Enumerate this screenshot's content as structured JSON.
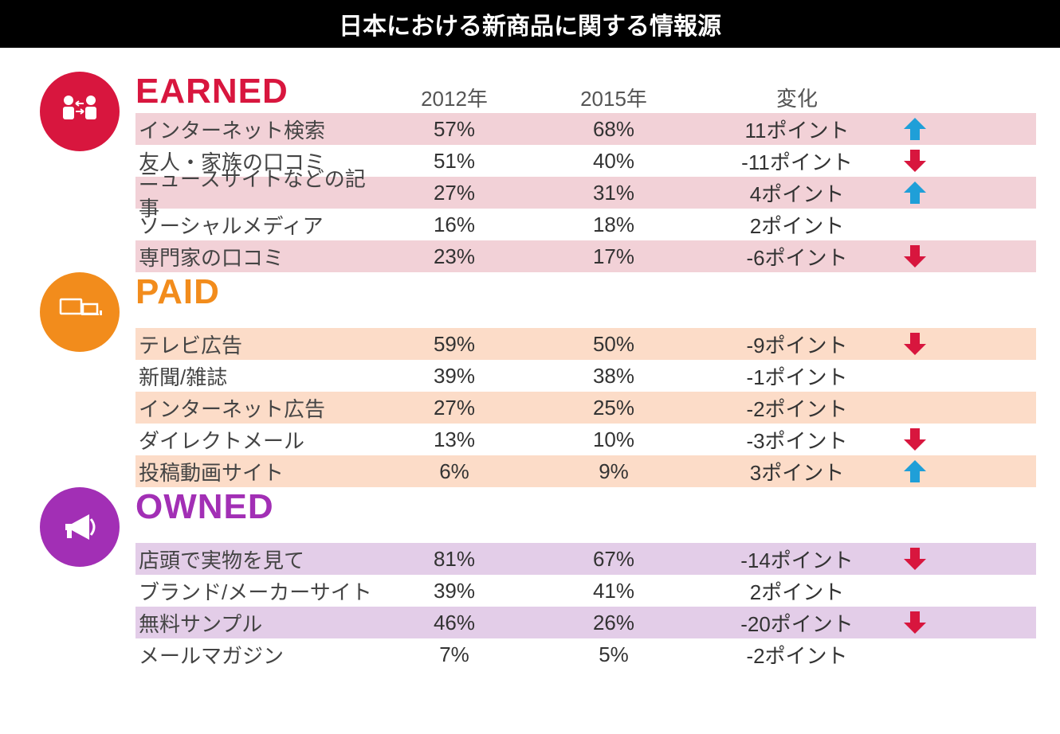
{
  "title": "日本における新商品に関する情報源",
  "colors": {
    "title_bar_bg": "#000000",
    "title_bar_text": "#ffffff",
    "earned": "#d8163e",
    "paid": "#f28c1c",
    "owned": "#a22fb5",
    "earned_alt_bg": "#f2d1d7",
    "paid_alt_bg": "#fcdcc8",
    "owned_alt_bg": "#e3cde8",
    "up_arrow": "#1f9fd8",
    "down_arrow": "#d8163e",
    "text": "#444444",
    "header_text": "#555555"
  },
  "headers": {
    "col_2012": "2012年",
    "col_2015": "2015年",
    "col_change": "変化"
  },
  "sections": [
    {
      "key": "earned",
      "label": "EARNED",
      "color": "#d8163e",
      "alt_bg": "#f2d1d7",
      "icon": "people-exchange",
      "rows": [
        {
          "label": "インターネット検索",
          "v2012": "57%",
          "v2015": "68%",
          "change": "11ポイント",
          "arrow": "up",
          "alt": true
        },
        {
          "label": "友人・家族の口コミ",
          "v2012": "51%",
          "v2015": "40%",
          "change": "-11ポイント",
          "arrow": "down",
          "alt": false
        },
        {
          "label": "ニュースサイトなどの記事",
          "v2012": "27%",
          "v2015": "31%",
          "change": "4ポイント",
          "arrow": "up",
          "alt": true
        },
        {
          "label": "ソーシャルメディア",
          "v2012": "16%",
          "v2015": "18%",
          "change": "2ポイント",
          "arrow": null,
          "alt": false
        },
        {
          "label": "専門家の口コミ",
          "v2012": "23%",
          "v2015": "17%",
          "change": "-6ポイント",
          "arrow": "down",
          "alt": true
        }
      ]
    },
    {
      "key": "paid",
      "label": "PAID",
      "color": "#f28c1c",
      "alt_bg": "#fcdcc8",
      "icon": "screens",
      "rows": [
        {
          "label": "テレビ広告",
          "v2012": "59%",
          "v2015": "50%",
          "change": "-9ポイント",
          "arrow": "down",
          "alt": true
        },
        {
          "label": "新聞/雑誌",
          "v2012": "39%",
          "v2015": "38%",
          "change": "-1ポイント",
          "arrow": null,
          "alt": false
        },
        {
          "label": "インターネット広告",
          "v2012": "27%",
          "v2015": "25%",
          "change": "-2ポイント",
          "arrow": null,
          "alt": true
        },
        {
          "label": "ダイレクトメール",
          "v2012": "13%",
          "v2015": "10%",
          "change": "-3ポイント",
          "arrow": "down",
          "alt": false
        },
        {
          "label": "投稿動画サイト",
          "v2012": "6%",
          "v2015": "9%",
          "change": "3ポイント",
          "arrow": "up",
          "alt": true
        }
      ]
    },
    {
      "key": "owned",
      "label": "OWNED",
      "color": "#a22fb5",
      "alt_bg": "#e3cde8",
      "icon": "megaphone",
      "rows": [
        {
          "label": "店頭で実物を見て",
          "v2012": "81%",
          "v2015": "67%",
          "change": "-14ポイント",
          "arrow": "down",
          "alt": true
        },
        {
          "label": "ブランド/メーカーサイト",
          "v2012": "39%",
          "v2015": "41%",
          "change": "2ポイント",
          "arrow": null,
          "alt": false
        },
        {
          "label": "無料サンプル",
          "v2012": "46%",
          "v2015": "26%",
          "change": "-20ポイント",
          "arrow": "down",
          "alt": true
        },
        {
          "label": "メールマガジン",
          "v2012": "7%",
          "v2015": "5%",
          "change": "-2ポイント",
          "arrow": null,
          "alt": false
        }
      ]
    }
  ]
}
